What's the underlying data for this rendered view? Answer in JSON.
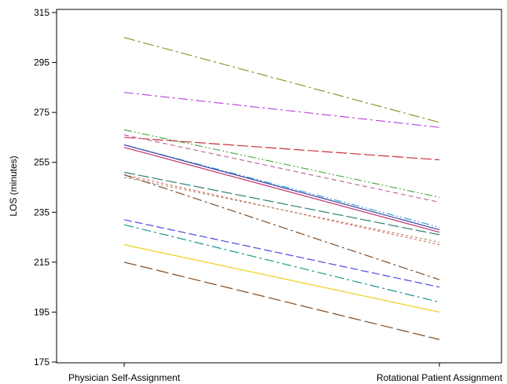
{
  "chart_data": {
    "type": "line",
    "title": "",
    "xlabel": "",
    "ylabel": "LOS (minutes)",
    "categories": [
      "Physician Self-Assignment",
      "Rotational Patient Assignment"
    ],
    "ylim": [
      175,
      315
    ],
    "yticks": [
      175,
      195,
      215,
      235,
      255,
      275,
      295,
      315
    ],
    "grid": false,
    "legend": "none",
    "series": [
      {
        "values": [
          305,
          271
        ],
        "color": "#8a9a2a",
        "dash": "14,4,3,4"
      },
      {
        "values": [
          283,
          269
        ],
        "color": "#b84fd8",
        "dash": "12,4,3,4"
      },
      {
        "values": [
          268,
          241
        ],
        "color": "#4fae4a",
        "dash": "10,3,2,3,2,3"
      },
      {
        "values": [
          265,
          256
        ],
        "color": "#c8323a",
        "dash": "14,4"
      },
      {
        "values": [
          266,
          239
        ],
        "color": "#c06a9a",
        "dash": "6,4"
      },
      {
        "values": [
          262,
          229
        ],
        "color": "#3aa0e0",
        "dash": "10,3,2,3,2,3"
      },
      {
        "values": [
          262,
          228
        ],
        "color": "#3a3fa0",
        "dash": ""
      },
      {
        "values": [
          261,
          227
        ],
        "color": "#c0306a",
        "dash": ""
      },
      {
        "values": [
          251,
          226
        ],
        "color": "#2e8070",
        "dash": "14,4"
      },
      {
        "values": [
          250,
          222
        ],
        "color": "#e07070",
        "dash": "3,3"
      },
      {
        "values": [
          249,
          223
        ],
        "color": "#b09070",
        "dash": "3,3"
      },
      {
        "values": [
          250,
          208
        ],
        "color": "#7a5030",
        "dash": "12,4,3,4"
      },
      {
        "values": [
          232,
          205
        ],
        "color": "#4a4ae0",
        "dash": "10,4"
      },
      {
        "values": [
          230,
          199
        ],
        "color": "#1a9a8a",
        "dash": "12,4,3,4"
      },
      {
        "values": [
          222,
          195
        ],
        "color": "#f0d020",
        "dash": ""
      },
      {
        "values": [
          215,
          184
        ],
        "color": "#7a4a20",
        "dash": "16,5"
      }
    ]
  }
}
